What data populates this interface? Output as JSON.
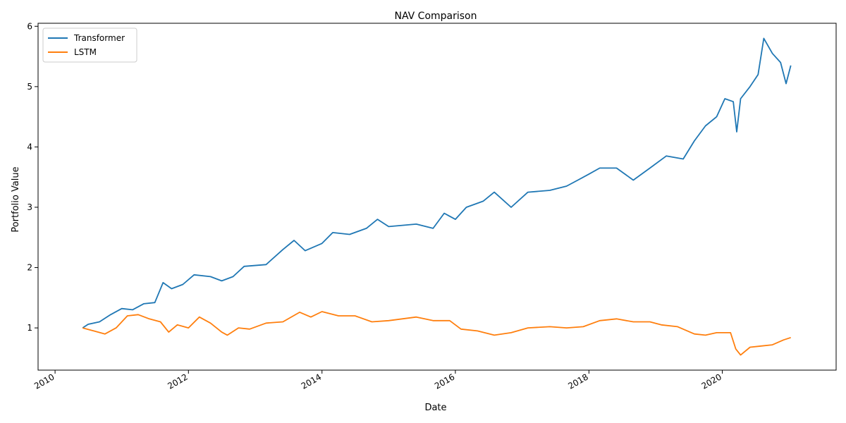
{
  "chart_data": {
    "type": "line",
    "title": "NAV Comparison",
    "xlabel": "Date",
    "ylabel": "Portfolio Value",
    "xlim": [
      "2009-09-30",
      "2021-09-15"
    ],
    "ylim": [
      0.3,
      6.05
    ],
    "x_ticks": [
      "2010",
      "2012",
      "2014",
      "2016",
      "2018",
      "2020"
    ],
    "y_ticks": [
      "1",
      "2",
      "3",
      "4",
      "5",
      "6"
    ],
    "grid": false,
    "legend_position": "upper-left",
    "series": [
      {
        "name": "Transformer",
        "color": "#1f77b4",
        "points": [
          [
            "2010-06-01",
            1.0
          ],
          [
            "2010-07-01",
            1.06
          ],
          [
            "2010-09-01",
            1.1
          ],
          [
            "2010-11-01",
            1.22
          ],
          [
            "2011-01-01",
            1.32
          ],
          [
            "2011-03-01",
            1.3
          ],
          [
            "2011-05-01",
            1.4
          ],
          [
            "2011-07-01",
            1.42
          ],
          [
            "2011-08-15",
            1.75
          ],
          [
            "2011-10-01",
            1.65
          ],
          [
            "2011-12-01",
            1.72
          ],
          [
            "2012-02-01",
            1.88
          ],
          [
            "2012-05-01",
            1.85
          ],
          [
            "2012-07-01",
            1.78
          ],
          [
            "2012-09-01",
            1.85
          ],
          [
            "2012-11-01",
            2.02
          ],
          [
            "2013-03-01",
            2.05
          ],
          [
            "2013-06-01",
            2.3
          ],
          [
            "2013-08-01",
            2.45
          ],
          [
            "2013-10-01",
            2.28
          ],
          [
            "2014-01-01",
            2.4
          ],
          [
            "2014-03-01",
            2.58
          ],
          [
            "2014-06-01",
            2.55
          ],
          [
            "2014-09-01",
            2.65
          ],
          [
            "2014-11-01",
            2.8
          ],
          [
            "2015-01-01",
            2.68
          ],
          [
            "2015-06-01",
            2.72
          ],
          [
            "2015-09-01",
            2.65
          ],
          [
            "2015-11-01",
            2.9
          ],
          [
            "2016-01-01",
            2.8
          ],
          [
            "2016-03-01",
            3.0
          ],
          [
            "2016-06-01",
            3.1
          ],
          [
            "2016-08-01",
            3.25
          ],
          [
            "2016-11-01",
            3.0
          ],
          [
            "2017-02-01",
            3.25
          ],
          [
            "2017-06-01",
            3.28
          ],
          [
            "2017-09-01",
            3.35
          ],
          [
            "2017-11-01",
            3.45
          ],
          [
            "2018-01-01",
            3.55
          ],
          [
            "2018-03-01",
            3.65
          ],
          [
            "2018-06-01",
            3.65
          ],
          [
            "2018-09-01",
            3.45
          ],
          [
            "2018-12-01",
            3.65
          ],
          [
            "2019-03-01",
            3.85
          ],
          [
            "2019-06-01",
            3.8
          ],
          [
            "2019-08-01",
            4.1
          ],
          [
            "2019-10-01",
            4.35
          ],
          [
            "2019-12-01",
            4.5
          ],
          [
            "2020-01-15",
            4.8
          ],
          [
            "2020-03-01",
            4.75
          ],
          [
            "2020-03-20",
            4.25
          ],
          [
            "2020-04-10",
            4.8
          ],
          [
            "2020-06-01",
            5.0
          ],
          [
            "2020-07-15",
            5.2
          ],
          [
            "2020-08-15",
            5.8
          ],
          [
            "2020-10-01",
            5.55
          ],
          [
            "2020-11-15",
            5.4
          ],
          [
            "2020-12-15",
            5.05
          ],
          [
            "2021-01-10",
            5.35
          ]
        ]
      },
      {
        "name": "LSTM",
        "color": "#ff7f0e",
        "points": [
          [
            "2010-06-01",
            1.0
          ],
          [
            "2010-08-01",
            0.95
          ],
          [
            "2010-10-01",
            0.9
          ],
          [
            "2010-12-01",
            1.0
          ],
          [
            "2011-02-01",
            1.2
          ],
          [
            "2011-04-01",
            1.22
          ],
          [
            "2011-06-01",
            1.15
          ],
          [
            "2011-08-01",
            1.1
          ],
          [
            "2011-09-15",
            0.93
          ],
          [
            "2011-11-01",
            1.05
          ],
          [
            "2012-01-01",
            1.0
          ],
          [
            "2012-03-01",
            1.18
          ],
          [
            "2012-05-01",
            1.08
          ],
          [
            "2012-07-01",
            0.93
          ],
          [
            "2012-08-01",
            0.88
          ],
          [
            "2012-10-01",
            1.0
          ],
          [
            "2012-12-01",
            0.98
          ],
          [
            "2013-03-01",
            1.08
          ],
          [
            "2013-06-01",
            1.1
          ],
          [
            "2013-09-01",
            1.26
          ],
          [
            "2013-11-01",
            1.18
          ],
          [
            "2014-01-01",
            1.27
          ],
          [
            "2014-04-01",
            1.2
          ],
          [
            "2014-07-01",
            1.2
          ],
          [
            "2014-10-01",
            1.1
          ],
          [
            "2015-01-01",
            1.12
          ],
          [
            "2015-06-01",
            1.18
          ],
          [
            "2015-09-01",
            1.12
          ],
          [
            "2015-12-01",
            1.12
          ],
          [
            "2016-02-01",
            0.98
          ],
          [
            "2016-05-01",
            0.95
          ],
          [
            "2016-08-01",
            0.88
          ],
          [
            "2016-11-01",
            0.92
          ],
          [
            "2017-02-01",
            1.0
          ],
          [
            "2017-06-01",
            1.02
          ],
          [
            "2017-09-01",
            1.0
          ],
          [
            "2017-12-01",
            1.02
          ],
          [
            "2018-03-01",
            1.12
          ],
          [
            "2018-06-01",
            1.15
          ],
          [
            "2018-09-01",
            1.1
          ],
          [
            "2018-12-01",
            1.1
          ],
          [
            "2019-02-01",
            1.05
          ],
          [
            "2019-05-01",
            1.02
          ],
          [
            "2019-08-01",
            0.9
          ],
          [
            "2019-10-01",
            0.88
          ],
          [
            "2019-12-01",
            0.92
          ],
          [
            "2020-02-15",
            0.92
          ],
          [
            "2020-03-15",
            0.65
          ],
          [
            "2020-04-10",
            0.55
          ],
          [
            "2020-06-01",
            0.68
          ],
          [
            "2020-08-01",
            0.7
          ],
          [
            "2020-10-01",
            0.72
          ],
          [
            "2020-12-01",
            0.8
          ],
          [
            "2021-01-10",
            0.84
          ]
        ]
      }
    ]
  }
}
